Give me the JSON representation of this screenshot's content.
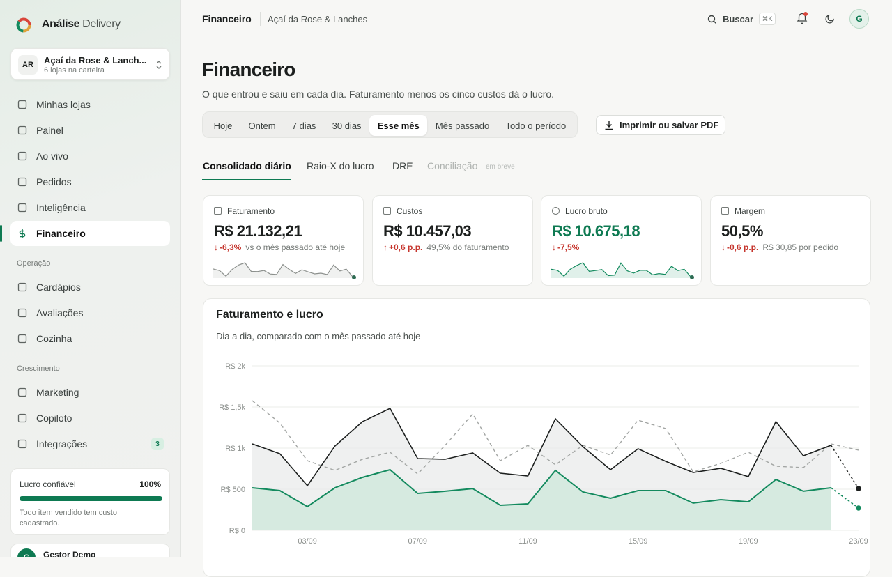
{
  "sidebar": {
    "brand": {
      "name": "Análise",
      "suffix": "Delivery"
    },
    "store": {
      "initials": "AR",
      "name": "Açaí da Rose & Lanch...",
      "subtitle": "6 lojas na carteira"
    },
    "nav": [
      "Minhas lojas",
      "Painel",
      "Ao vivo",
      "Pedidos",
      "Inteligência",
      "Financeiro"
    ],
    "sections": [
      {
        "title": "Operação",
        "items": [
          "Cardápios",
          "Avaliações",
          "Cozinha"
        ]
      },
      {
        "title": "Crescimento",
        "items": [
          "Marketing",
          "Copiloto",
          "Integrações"
        ]
      }
    ],
    "badge": "3",
    "trust": {
      "label": "Lucro confiável",
      "value": {
        "value": 100,
        "label": "100%"
      },
      "note": "Todo item vendido tem custo cadastrado."
    },
    "user": {
      "initial": "G",
      "name": "Gestor Demo"
    }
  },
  "header": {
    "section": "Financeiro",
    "store": "Açaí da Rose & Lanches",
    "search": "Buscar",
    "shortcut": "⌘K",
    "avatar": "G"
  },
  "page": {
    "title": "Financeiro",
    "subtitle": "O que entrou e saiu em cada dia. Faturamento menos os cinco custos dá o lucro.",
    "periods": [
      "Hoje",
      "Ontem",
      "7 dias",
      "30 dias",
      "Esse mês",
      "Mês passado",
      "Todo o período"
    ],
    "print": "Imprimir ou salvar PDF",
    "tabs": [
      "Consolidado diário",
      "Raio-X do lucro",
      "DRE",
      "Conciliação"
    ],
    "soon": "em breve"
  },
  "kpis": [
    {
      "label": "Faturamento",
      "value": "R$ 21.132,21",
      "delta": "-6,3%",
      "note": "vs o mês passado até hoje"
    },
    {
      "label": "Custos",
      "value": "R$ 10.457,03",
      "delta": "+0,6 p.p.",
      "note": "49,5% do faturamento"
    },
    {
      "label": "Lucro bruto",
      "value": "R$ 10.675,18",
      "delta": "-7,5%",
      "note": ""
    },
    {
      "label": "Margem",
      "value": "50,5%",
      "delta": "-0,6 p.p.",
      "note": "R$ 30,85 por pedido"
    }
  ],
  "chart_data": {
    "type": "line",
    "title": "Faturamento e lucro",
    "subtitle": "Dia a dia, comparado com o mês passado até hoje",
    "categories": [
      null,
      null,
      "03/09",
      null,
      null,
      null,
      "07/09",
      null,
      null,
      null,
      "11/09",
      null,
      null,
      null,
      "15/09",
      null,
      null,
      null,
      "19/09",
      null,
      null,
      null,
      "23/09"
    ],
    "series": [
      {
        "color": "#1c1f1e",
        "values": [
          1051,
          932,
          542,
          1025,
          1322,
          1483,
          873,
          864,
          941,
          695,
          661,
          1356,
          1017,
          737,
          992,
          839,
          703,
          754,
          653,
          1322,
          907,
          1034,
          508
        ]
      },
      {
        "color": "#a3a6a4",
        "values": [
          1576,
          1305,
          847,
          729,
          864,
          949,
          686,
          1034,
          1415,
          847,
          1034,
          797,
          1034,
          915,
          1339,
          1237,
          712,
          814,
          949,
          780,
          763,
          1051,
          975
        ]
      },
      {
        "color": "#138a5e",
        "values": [
          517,
          483,
          288,
          517,
          644,
          737,
          449,
          475,
          508,
          305,
          322,
          729,
          466,
          390,
          483,
          483,
          331,
          373,
          347,
          619,
          475,
          517,
          271
        ]
      }
    ],
    "ylim": [
      0,
      2000
    ],
    "yticks": [
      {
        "value": 0,
        "label": "R$ 0"
      },
      {
        "value": 500,
        "label": "R$ 500"
      },
      {
        "value": 1000,
        "label": "R$ 1k"
      },
      {
        "value": 1500,
        "label": "R$ 1,5k"
      },
      {
        "value": 2000,
        "label": "R$ 2k"
      }
    ],
    "grid": true
  }
}
